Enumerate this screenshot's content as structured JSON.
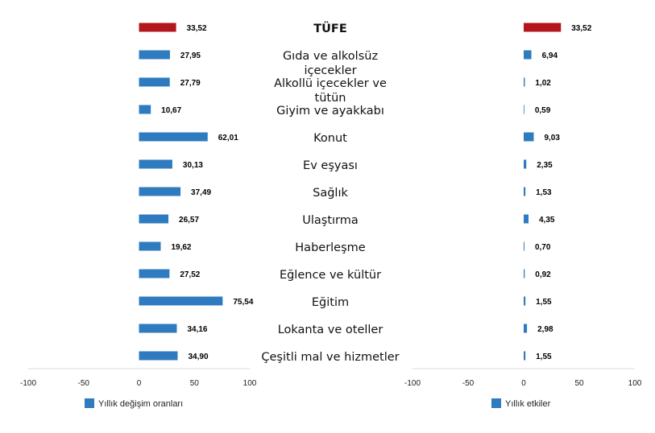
{
  "chart_data": {
    "type": "bar",
    "orientation": "horizontal",
    "categories": [
      "TÜFE",
      "Gıda ve alkolsüz içecekler",
      "Alkollü içecekler ve tütün",
      "Giyim ve ayakkabı",
      "Konut",
      "Ev eşyası",
      "Sağlık",
      "Ulaştırma",
      "Haberleşme",
      "Eğlence ve kültür",
      "Eğitim",
      "Lokanta ve oteller",
      "Çeşitli mal ve hizmetler"
    ],
    "category_display": [
      [
        "TÜFE"
      ],
      [
        "Gıda ve alkolsüz",
        "içecekler"
      ],
      [
        "Alkollü içecekler ve",
        "tütün"
      ],
      [
        "Giyim ve ayakkabı"
      ],
      [
        "Konut"
      ],
      [
        "Ev eşyası"
      ],
      [
        "Sağlık"
      ],
      [
        "Ulaştırma"
      ],
      [
        "Haberleşme"
      ],
      [
        "Eğlence ve kültür"
      ],
      [
        "Eğitim"
      ],
      [
        "Lokanta ve oteller"
      ],
      [
        "Çeşitli mal ve hizmetler"
      ]
    ],
    "series": [
      {
        "name": "Yıllık değişim oranları",
        "values": [
          33.52,
          27.95,
          27.79,
          10.67,
          62.01,
          30.13,
          37.49,
          26.57,
          19.62,
          27.52,
          75.54,
          34.16,
          34.9
        ],
        "labels": [
          "33,52",
          "27,95",
          "27,79",
          "10,67",
          "62,01",
          "30,13",
          "37,49",
          "26,57",
          "19,62",
          "27,52",
          "75,54",
          "34,16",
          "34,90"
        ]
      },
      {
        "name": "Yıllık etkiler",
        "values": [
          33.52,
          6.94,
          1.02,
          0.59,
          9.03,
          2.35,
          1.53,
          4.35,
          0.7,
          0.92,
          1.55,
          2.98,
          1.55
        ],
        "labels": [
          "33,52",
          "6,94",
          "1,02",
          "0,59",
          "9,03",
          "2,35",
          "1,53",
          "4,35",
          "0,70",
          "0,92",
          "1,55",
          "2,98",
          "1,55"
        ]
      }
    ],
    "xlim": [
      -100,
      100
    ],
    "xticks": [
      -100,
      -50,
      0,
      50,
      100
    ],
    "grid": false,
    "legend_placement": "bottom-left",
    "colors": {
      "highlight": "#b3161c",
      "bar": "#2e7bbf",
      "axis": "#d9d9d9"
    }
  }
}
